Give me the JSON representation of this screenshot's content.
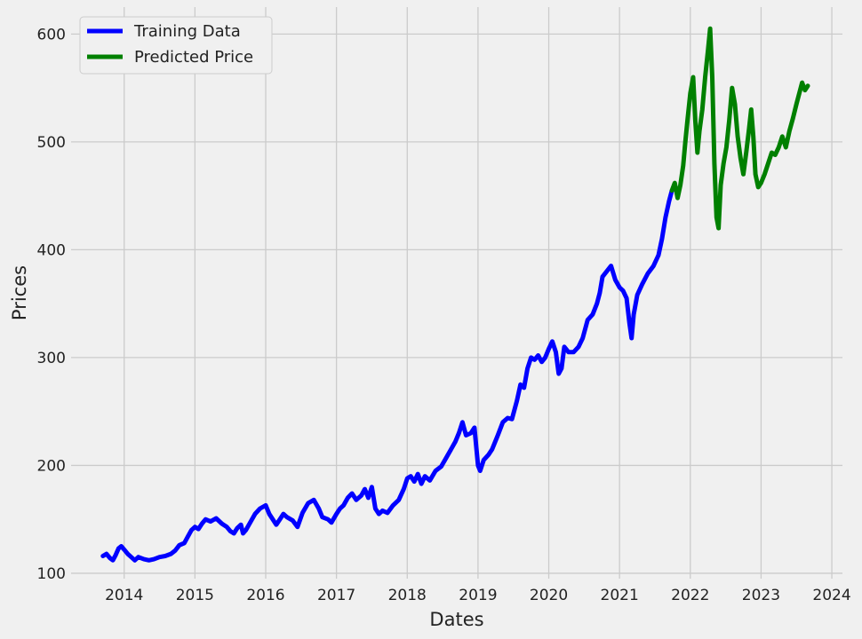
{
  "chart_data": {
    "type": "line",
    "xlabel": "Dates",
    "ylabel": "Prices",
    "xlim": [
      2013.25,
      2024.15
    ],
    "ylim": [
      95,
      625
    ],
    "x_ticks": [
      2014,
      2015,
      2016,
      2017,
      2018,
      2019,
      2020,
      2021,
      2022,
      2023,
      2024
    ],
    "x_tick_labels": [
      "2014",
      "2015",
      "2016",
      "2017",
      "2018",
      "2019",
      "2020",
      "2021",
      "2022",
      "2023",
      "2024"
    ],
    "y_ticks": [
      100,
      200,
      300,
      400,
      500,
      600
    ],
    "y_tick_labels": [
      "100",
      "200",
      "300",
      "400",
      "500",
      "600"
    ],
    "grid": true,
    "legend_position": "top-left",
    "series": [
      {
        "name": "Training Data",
        "color": "#0000ff",
        "points": [
          [
            2013.7,
            116
          ],
          [
            2013.75,
            118
          ],
          [
            2013.8,
            114
          ],
          [
            2013.84,
            112
          ],
          [
            2013.88,
            117
          ],
          [
            2013.92,
            123
          ],
          [
            2013.96,
            125
          ],
          [
            2014.0,
            122
          ],
          [
            2014.05,
            118
          ],
          [
            2014.1,
            115
          ],
          [
            2014.15,
            112
          ],
          [
            2014.2,
            115
          ],
          [
            2014.28,
            113
          ],
          [
            2014.35,
            112
          ],
          [
            2014.42,
            113
          ],
          [
            2014.5,
            115
          ],
          [
            2014.58,
            116
          ],
          [
            2014.66,
            118
          ],
          [
            2014.72,
            121
          ],
          [
            2014.78,
            126
          ],
          [
            2014.85,
            128
          ],
          [
            2014.9,
            134
          ],
          [
            2014.95,
            140
          ],
          [
            2015.0,
            143
          ],
          [
            2015.05,
            141
          ],
          [
            2015.1,
            146
          ],
          [
            2015.15,
            150
          ],
          [
            2015.22,
            148
          ],
          [
            2015.3,
            151
          ],
          [
            2015.38,
            146
          ],
          [
            2015.45,
            143
          ],
          [
            2015.5,
            139
          ],
          [
            2015.55,
            137
          ],
          [
            2015.6,
            142
          ],
          [
            2015.65,
            145
          ],
          [
            2015.68,
            137
          ],
          [
            2015.72,
            140
          ],
          [
            2015.78,
            147
          ],
          [
            2015.85,
            155
          ],
          [
            2015.92,
            160
          ],
          [
            2016.0,
            163
          ],
          [
            2016.05,
            155
          ],
          [
            2016.1,
            150
          ],
          [
            2016.15,
            145
          ],
          [
            2016.2,
            150
          ],
          [
            2016.25,
            155
          ],
          [
            2016.3,
            152
          ],
          [
            2016.38,
            149
          ],
          [
            2016.45,
            143
          ],
          [
            2016.52,
            156
          ],
          [
            2016.6,
            165
          ],
          [
            2016.68,
            168
          ],
          [
            2016.75,
            160
          ],
          [
            2016.8,
            152
          ],
          [
            2016.88,
            150
          ],
          [
            2016.93,
            147
          ],
          [
            2017.0,
            155
          ],
          [
            2017.05,
            160
          ],
          [
            2017.1,
            163
          ],
          [
            2017.16,
            170
          ],
          [
            2017.22,
            174
          ],
          [
            2017.28,
            168
          ],
          [
            2017.35,
            172
          ],
          [
            2017.4,
            178
          ],
          [
            2017.45,
            170
          ],
          [
            2017.5,
            180
          ],
          [
            2017.55,
            160
          ],
          [
            2017.6,
            155
          ],
          [
            2017.65,
            158
          ],
          [
            2017.72,
            156
          ],
          [
            2017.8,
            163
          ],
          [
            2017.88,
            168
          ],
          [
            2017.95,
            178
          ],
          [
            2018.0,
            188
          ],
          [
            2018.05,
            190
          ],
          [
            2018.1,
            185
          ],
          [
            2018.15,
            192
          ],
          [
            2018.2,
            183
          ],
          [
            2018.25,
            190
          ],
          [
            2018.32,
            186
          ],
          [
            2018.4,
            195
          ],
          [
            2018.48,
            199
          ],
          [
            2018.55,
            207
          ],
          [
            2018.62,
            215
          ],
          [
            2018.68,
            222
          ],
          [
            2018.73,
            230
          ],
          [
            2018.78,
            240
          ],
          [
            2018.83,
            228
          ],
          [
            2018.9,
            230
          ],
          [
            2018.95,
            235
          ],
          [
            2019.0,
            200
          ],
          [
            2019.03,
            195
          ],
          [
            2019.08,
            205
          ],
          [
            2019.15,
            210
          ],
          [
            2019.2,
            215
          ],
          [
            2019.28,
            228
          ],
          [
            2019.35,
            240
          ],
          [
            2019.42,
            244
          ],
          [
            2019.48,
            243
          ],
          [
            2019.55,
            260
          ],
          [
            2019.6,
            275
          ],
          [
            2019.65,
            272
          ],
          [
            2019.7,
            290
          ],
          [
            2019.75,
            300
          ],
          [
            2019.8,
            298
          ],
          [
            2019.85,
            302
          ],
          [
            2019.9,
            296
          ],
          [
            2019.95,
            300
          ],
          [
            2020.0,
            308
          ],
          [
            2020.05,
            315
          ],
          [
            2020.1,
            305
          ],
          [
            2020.14,
            285
          ],
          [
            2020.18,
            290
          ],
          [
            2020.22,
            310
          ],
          [
            2020.28,
            305
          ],
          [
            2020.35,
            305
          ],
          [
            2020.42,
            310
          ],
          [
            2020.48,
            318
          ],
          [
            2020.55,
            335
          ],
          [
            2020.62,
            340
          ],
          [
            2020.68,
            350
          ],
          [
            2020.72,
            360
          ],
          [
            2020.76,
            375
          ],
          [
            2020.82,
            380
          ],
          [
            2020.88,
            385
          ],
          [
            2020.94,
            372
          ],
          [
            2021.0,
            365
          ],
          [
            2021.05,
            362
          ],
          [
            2021.1,
            355
          ],
          [
            2021.14,
            332
          ],
          [
            2021.17,
            318
          ],
          [
            2021.2,
            340
          ],
          [
            2021.25,
            358
          ],
          [
            2021.32,
            368
          ],
          [
            2021.4,
            378
          ],
          [
            2021.48,
            385
          ],
          [
            2021.55,
            395
          ],
          [
            2021.6,
            410
          ],
          [
            2021.65,
            430
          ],
          [
            2021.7,
            445
          ],
          [
            2021.74,
            455
          ]
        ]
      },
      {
        "name": "Predicted Price",
        "color": "#008000",
        "points": [
          [
            2021.74,
            455
          ],
          [
            2021.78,
            462
          ],
          [
            2021.82,
            448
          ],
          [
            2021.86,
            460
          ],
          [
            2021.9,
            478
          ],
          [
            2021.93,
            500
          ],
          [
            2021.96,
            520
          ],
          [
            2022.0,
            545
          ],
          [
            2022.04,
            560
          ],
          [
            2022.07,
            520
          ],
          [
            2022.1,
            490
          ],
          [
            2022.13,
            510
          ],
          [
            2022.17,
            530
          ],
          [
            2022.21,
            560
          ],
          [
            2022.25,
            585
          ],
          [
            2022.28,
            605
          ],
          [
            2022.31,
            560
          ],
          [
            2022.34,
            480
          ],
          [
            2022.37,
            430
          ],
          [
            2022.4,
            420
          ],
          [
            2022.43,
            460
          ],
          [
            2022.47,
            480
          ],
          [
            2022.51,
            495
          ],
          [
            2022.55,
            520
          ],
          [
            2022.59,
            550
          ],
          [
            2022.63,
            535
          ],
          [
            2022.67,
            505
          ],
          [
            2022.71,
            485
          ],
          [
            2022.75,
            470
          ],
          [
            2022.79,
            490
          ],
          [
            2022.83,
            512
          ],
          [
            2022.86,
            530
          ],
          [
            2022.89,
            505
          ],
          [
            2022.92,
            470
          ],
          [
            2022.96,
            458
          ],
          [
            2023.0,
            462
          ],
          [
            2023.05,
            470
          ],
          [
            2023.1,
            480
          ],
          [
            2023.15,
            490
          ],
          [
            2023.2,
            488
          ],
          [
            2023.25,
            495
          ],
          [
            2023.3,
            505
          ],
          [
            2023.35,
            495
          ],
          [
            2023.4,
            510
          ],
          [
            2023.45,
            522
          ],
          [
            2023.5,
            535
          ],
          [
            2023.54,
            545
          ],
          [
            2023.58,
            555
          ],
          [
            2023.62,
            548
          ],
          [
            2023.66,
            552
          ]
        ]
      }
    ]
  }
}
